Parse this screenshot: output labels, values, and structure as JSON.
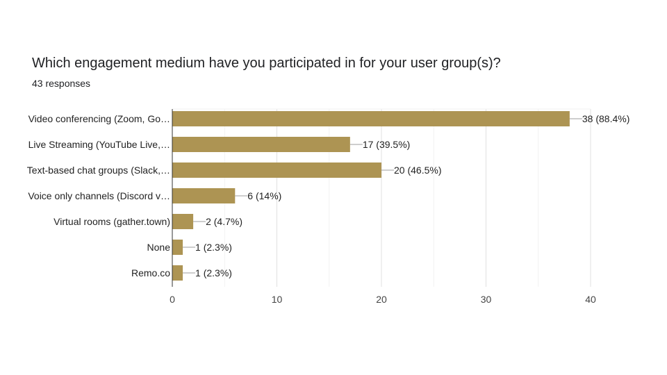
{
  "title": "Which engagement medium have you participated in for your user group(s)?",
  "subtitle": "43 responses",
  "chart_data": {
    "type": "bar",
    "orientation": "horizontal",
    "categories": [
      "Video conferencing (Zoom, Go…",
      "Live Streaming (YouTube Live,…",
      "Text-based chat groups (Slack,…",
      "Voice only channels (Discord v…",
      "Virtual rooms (gather.town)",
      "None",
      "Remo.co"
    ],
    "values": [
      38,
      17,
      20,
      6,
      2,
      1,
      1
    ],
    "data_labels": [
      "38 (88.4%)",
      "17 (39.5%)",
      "20 (46.5%)",
      "6 (14%)",
      "2 (4.7%)",
      "1 (2.3%)",
      "1 (2.3%)"
    ],
    "xlim": [
      0,
      40
    ],
    "xticks": [
      0,
      10,
      20,
      30,
      40
    ],
    "grid": true,
    "legend": "none",
    "bar_color": "#ad9453"
  }
}
